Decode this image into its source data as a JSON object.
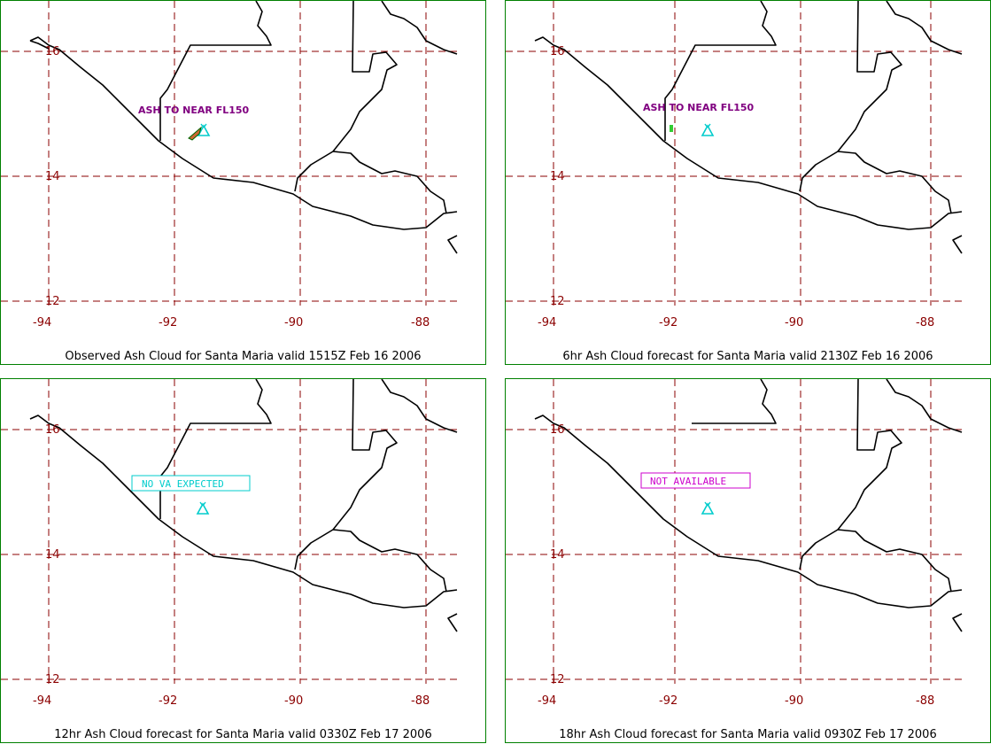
{
  "colors": {
    "frame": "#008000",
    "grid": "#8b0000",
    "coast": "#000000",
    "volcano": "#00cccc",
    "note_purple": "#800080",
    "cyan_box": "#00cccc",
    "magenta_box": "#cc00cc",
    "ash_fill": "#cc6633"
  },
  "axes": {
    "lon_labels": [
      "-94",
      "-92",
      "-90",
      "-88"
    ],
    "lat_labels": [
      "16",
      "14",
      "12"
    ]
  },
  "panels": [
    {
      "caption": "Observed Ash Cloud for Santa  Maria valid 1515Z Feb 16 2006",
      "annotation": "ASH TO NEAR FL150",
      "status_box": ""
    },
    {
      "caption": "6hr Ash Cloud forecast for Santa  Maria valid 2130Z Feb 16 2006",
      "annotation": "ASH TO NEAR FL150",
      "status_box": ""
    },
    {
      "caption": "12hr Ash Cloud forecast for Santa  Maria valid 0330Z Feb 17 2006",
      "annotation": "",
      "status_box": "NO VA EXPECTED"
    },
    {
      "caption": "18hr Ash Cloud forecast for Santa  Maria valid 0930Z Feb 17 2006",
      "annotation": "",
      "status_box": "NOT AVAILABLE"
    }
  ]
}
